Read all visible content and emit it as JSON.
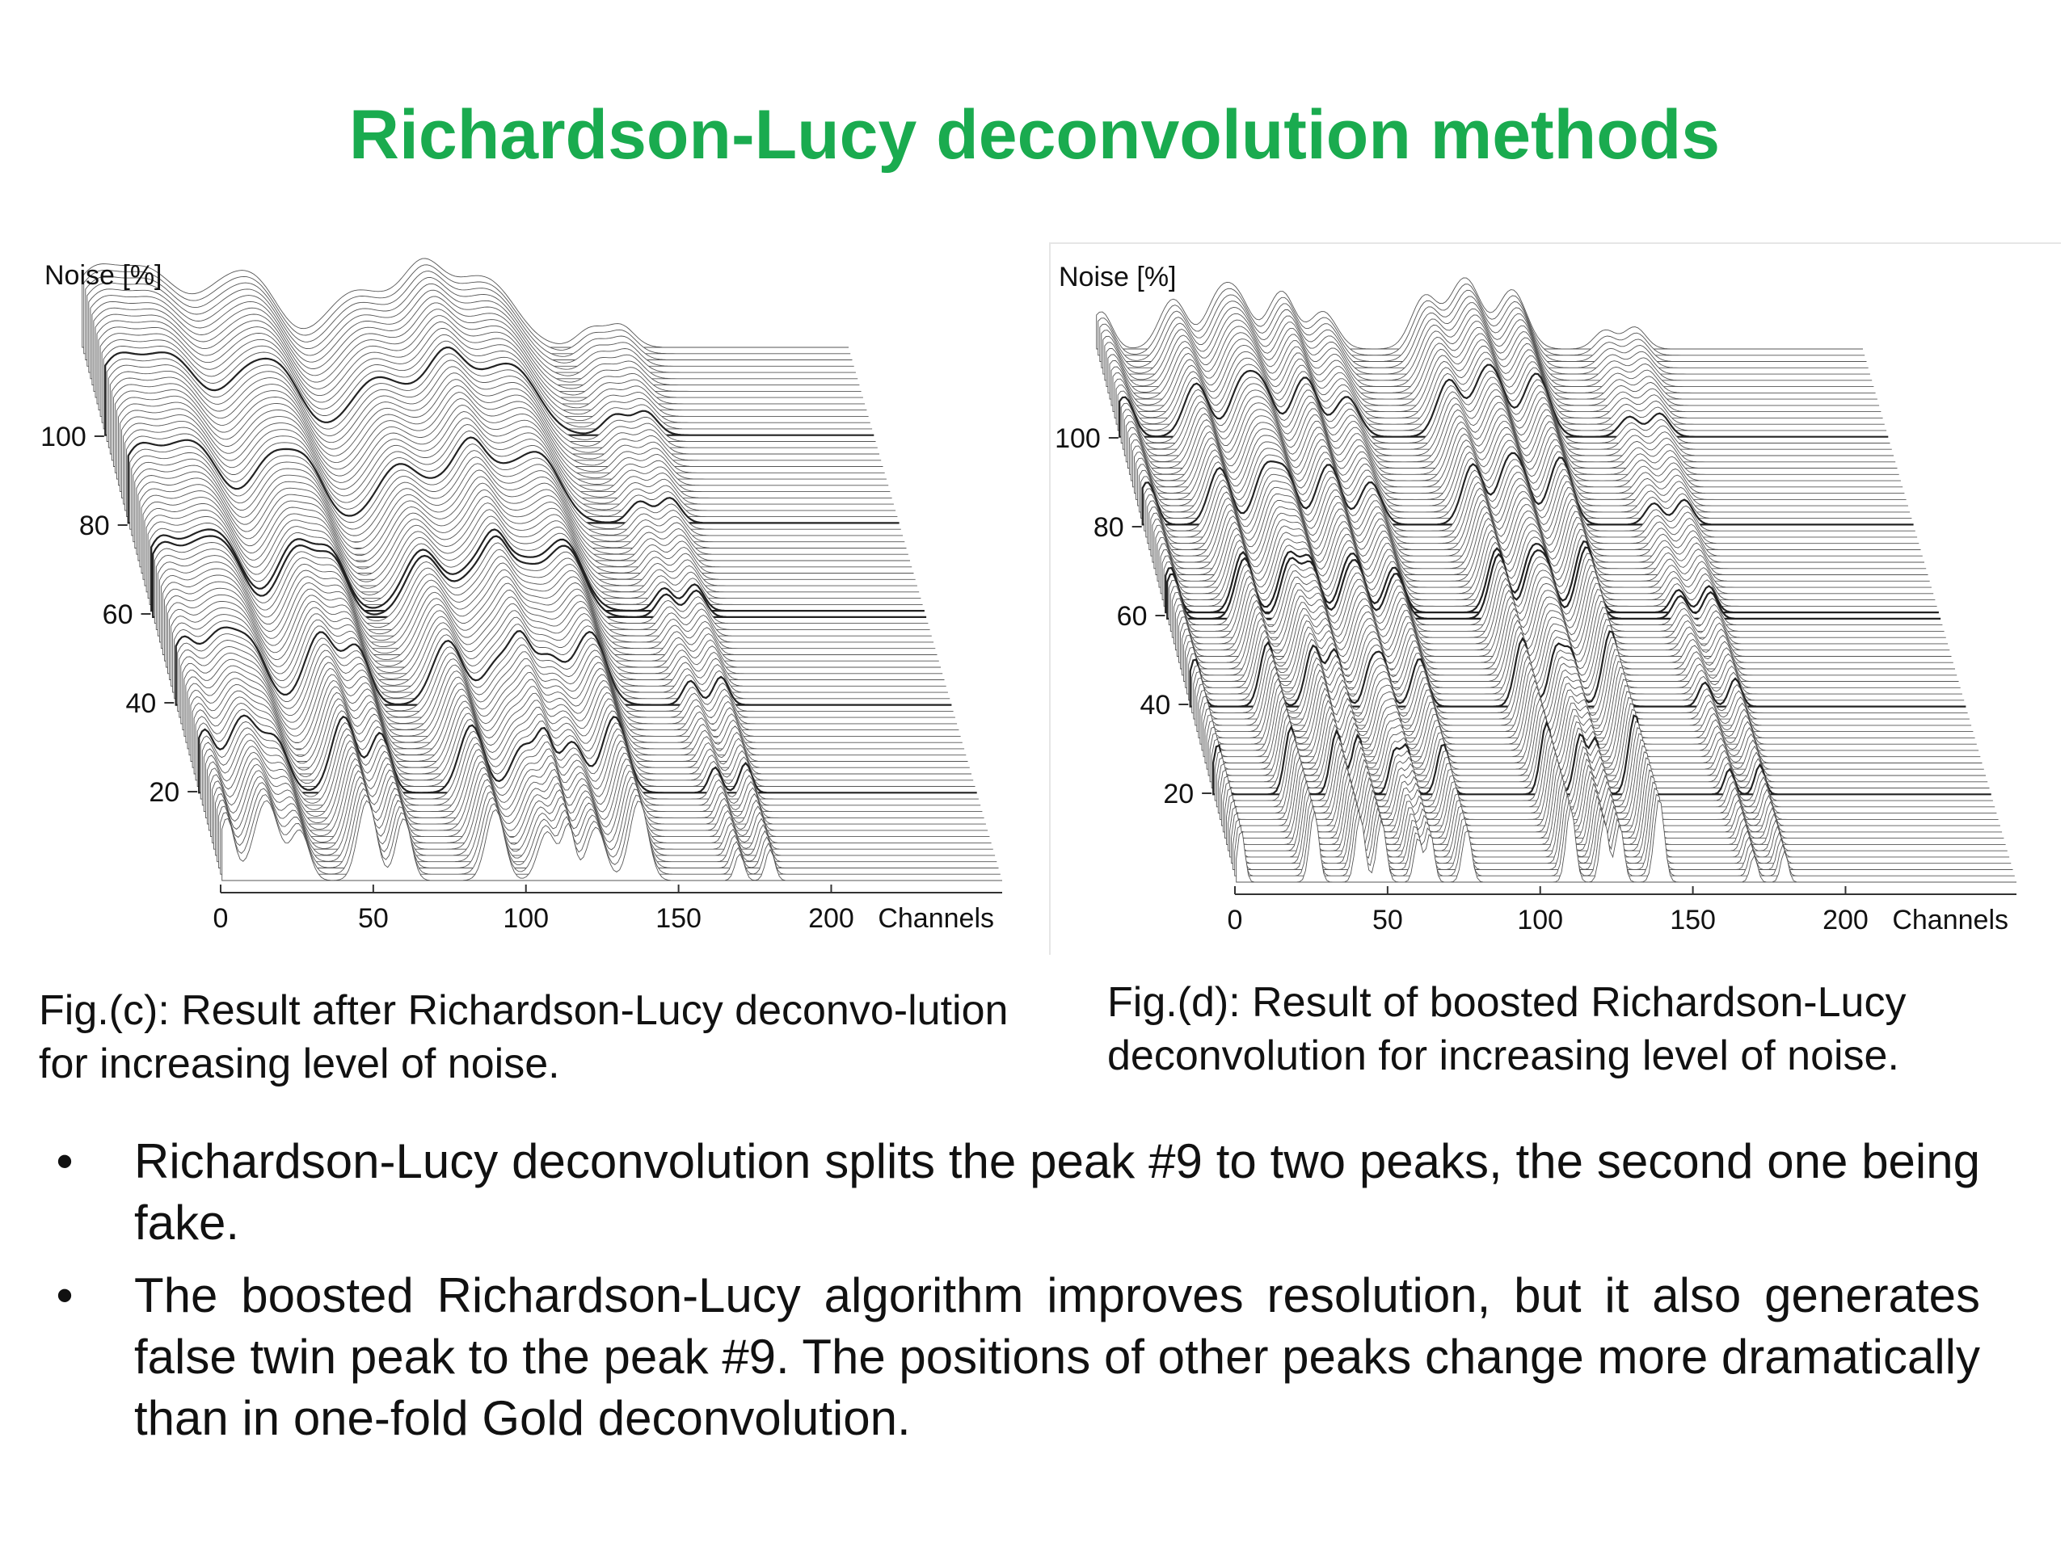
{
  "title": "Richardson-Lucy deconvolution methods",
  "figures": [
    {
      "id": "c",
      "noise_label": "Noise [%]",
      "x_label": "Channels",
      "x_ticks": [
        "0",
        "50",
        "100",
        "150",
        "200"
      ],
      "y_ticks": [
        "20",
        "40",
        "60",
        "80",
        "100"
      ],
      "caption": "Fig.(c): Result after Richardson-Lucy deconvo-lution  for increasing level of noise."
    },
    {
      "id": "d",
      "noise_label": "Noise [%]",
      "x_label": "Channels",
      "x_ticks": [
        "0",
        "50",
        "100",
        "150",
        "200"
      ],
      "y_ticks": [
        "20",
        "40",
        "60",
        "80",
        "100"
      ],
      "caption": "Fig.(d): Result of boosted Richardson-Lucy deconvolution for increasing level of noise."
    }
  ],
  "chart_data": [
    {
      "type": "area",
      "x_label": "Channels",
      "y_label": "Noise [%]",
      "x_range": [
        0,
        256
      ],
      "y_range": [
        0,
        120
      ],
      "x_ticks": [
        0,
        50,
        100,
        150,
        200
      ],
      "y_ticks": [
        20,
        40,
        60,
        80,
        100
      ],
      "peak_channels": [
        -20,
        2,
        15,
        26,
        48,
        60,
        90,
        107,
        114,
        123,
        137,
        170,
        180
      ],
      "peak_heights": [
        0.5,
        0.7,
        0.9,
        0.55,
        0.9,
        0.7,
        0.8,
        0.55,
        0.6,
        0.6,
        0.9,
        0.3,
        0.35
      ],
      "peak_widths": [
        2.5,
        2.5,
        4,
        3,
        3,
        2.5,
        3,
        3,
        2,
        3,
        3,
        1.5,
        1.5
      ]
    },
    {
      "type": "area",
      "x_label": "Channels",
      "y_label": "Noise [%]",
      "x_range": [
        0,
        256
      ],
      "y_range": [
        0,
        120
      ],
      "x_ticks": [
        0,
        50,
        100,
        150,
        200
      ],
      "y_ticks": [
        20,
        40,
        60,
        80,
        100
      ],
      "peak_channels": [
        -20,
        2,
        26,
        41,
        48,
        60,
        64,
        76,
        110,
        121,
        126,
        139,
        170,
        180
      ],
      "peak_heights": [
        0.4,
        0.6,
        0.8,
        0.75,
        0.7,
        0.5,
        0.55,
        0.6,
        0.85,
        0.7,
        0.65,
        0.95,
        0.3,
        0.35
      ],
      "peak_widths": [
        1.2,
        1.2,
        1.5,
        1.5,
        1.5,
        1.3,
        1.3,
        1.5,
        1.5,
        1.4,
        1.4,
        1.6,
        1.2,
        1.2
      ]
    }
  ],
  "bullets": [
    "Richardson-Lucy deconvolution splits the peak #9 to two peaks, the second one being fake.",
    "The boosted Richardson-Lucy algorithm improves resolution, but it also generates false twin peak to the peak #9. The positions of other peaks change more dramatically than in one-fold Gold deconvolution."
  ],
  "bullet_symbol": "•"
}
